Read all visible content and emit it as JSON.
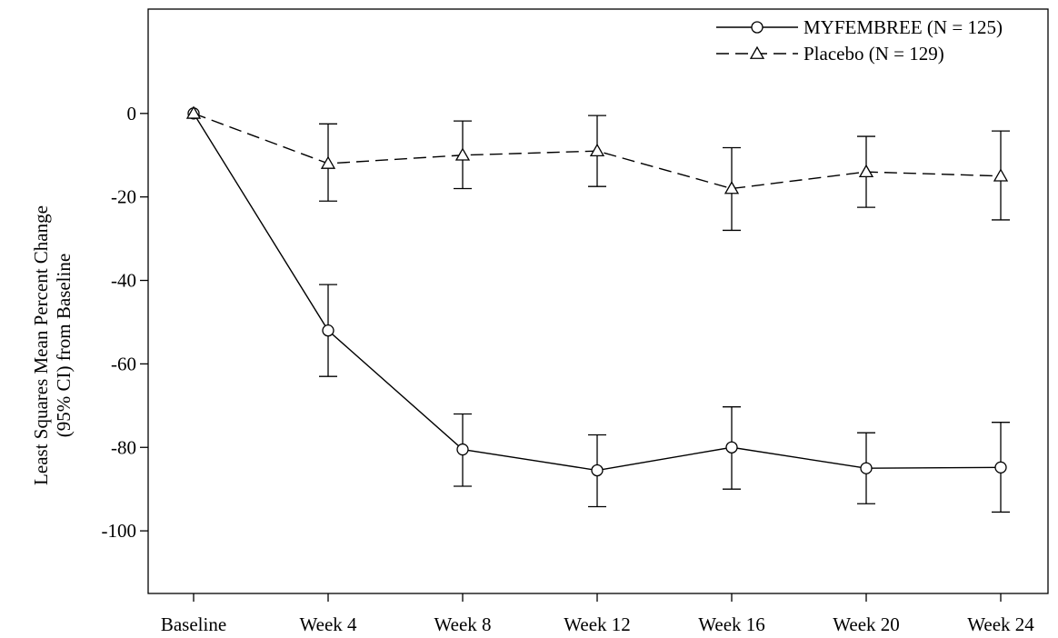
{
  "chart_data": {
    "type": "line",
    "categories": [
      "Baseline",
      "Week 4",
      "Week 8",
      "Week 12",
      "Week 16",
      "Week 20",
      "Week 24"
    ],
    "ylabel_line1": "Least Squares Mean Percent Change",
    "ylabel_line2": "(95% CI) from Baseline",
    "ylim": [
      -115,
      25
    ],
    "yticks": [
      0,
      -20,
      -40,
      -60,
      -80,
      -100
    ],
    "legend_position": "top-right",
    "grid": false,
    "series": [
      {
        "name": "MYFEMBREE (N = 125)",
        "marker": "circle",
        "line_style": "solid",
        "values": [
          0,
          -52,
          -80.5,
          -85.5,
          -80,
          -85,
          -84.8
        ],
        "ci_low": [
          0,
          -63,
          -89.3,
          -94.2,
          -90,
          -93.5,
          -95.5
        ],
        "ci_high": [
          0,
          -41,
          -72,
          -77,
          -70.3,
          -76.5,
          -74
        ]
      },
      {
        "name": "Placebo (N = 129)",
        "marker": "triangle",
        "line_style": "dashed",
        "values": [
          0,
          -12,
          -10,
          -9,
          -18,
          -14,
          -15
        ],
        "ci_low": [
          0,
          -21,
          -18,
          -17.5,
          -28,
          -22.5,
          -25.5
        ],
        "ci_high": [
          0,
          -2.5,
          -1.8,
          -0.5,
          -8.2,
          -5.5,
          -4.2
        ]
      }
    ]
  }
}
